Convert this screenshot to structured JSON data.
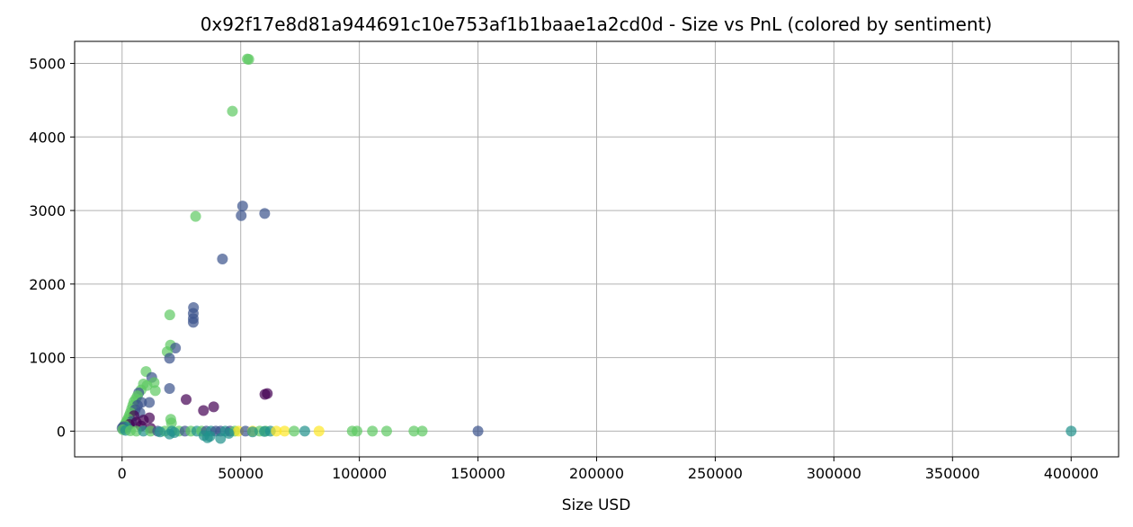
{
  "chart_data": {
    "type": "scatter",
    "title": "0x92f17e8d81a944691c10e753af1b1baae1a2cd0d - Size vs PnL (colored by sentiment)",
    "xlabel": "Size USD",
    "ylabel": "",
    "xlim": [
      -20000,
      420000
    ],
    "ylim": [
      -350,
      5300
    ],
    "xticks": [
      0,
      50000,
      100000,
      150000,
      200000,
      250000,
      300000,
      350000,
      400000
    ],
    "yticks": [
      0,
      1000,
      2000,
      3000,
      4000,
      5000
    ],
    "grid": true,
    "colors": {
      "purple": "#440154",
      "blue": "#3b528b",
      "teal": "#21918c",
      "green": "#5ec962",
      "yellow": "#fde725"
    },
    "points": [
      {
        "x": 52800,
        "y": 5060,
        "c": "green"
      },
      {
        "x": 53400,
        "y": 5055,
        "c": "green"
      },
      {
        "x": 46500,
        "y": 4350,
        "c": "green"
      },
      {
        "x": 50800,
        "y": 3060,
        "c": "blue"
      },
      {
        "x": 50200,
        "y": 2930,
        "c": "blue"
      },
      {
        "x": 60100,
        "y": 2960,
        "c": "blue"
      },
      {
        "x": 31000,
        "y": 2920,
        "c": "green"
      },
      {
        "x": 42300,
        "y": 2340,
        "c": "blue"
      },
      {
        "x": 30100,
        "y": 1680,
        "c": "blue"
      },
      {
        "x": 30000,
        "y": 1600,
        "c": "blue"
      },
      {
        "x": 30000,
        "y": 1530,
        "c": "blue"
      },
      {
        "x": 30000,
        "y": 1480,
        "c": "blue"
      },
      {
        "x": 20100,
        "y": 1580,
        "c": "green"
      },
      {
        "x": 20400,
        "y": 1170,
        "c": "green"
      },
      {
        "x": 22500,
        "y": 1130,
        "c": "blue"
      },
      {
        "x": 19000,
        "y": 1080,
        "c": "green"
      },
      {
        "x": 20000,
        "y": 990,
        "c": "blue"
      },
      {
        "x": 10100,
        "y": 810,
        "c": "green"
      },
      {
        "x": 12500,
        "y": 730,
        "c": "blue"
      },
      {
        "x": 13500,
        "y": 660,
        "c": "green"
      },
      {
        "x": 9000,
        "y": 640,
        "c": "green"
      },
      {
        "x": 10500,
        "y": 620,
        "c": "green"
      },
      {
        "x": 20000,
        "y": 580,
        "c": "blue"
      },
      {
        "x": 14000,
        "y": 550,
        "c": "green"
      },
      {
        "x": 8000,
        "y": 560,
        "c": "green"
      },
      {
        "x": 7000,
        "y": 520,
        "c": "blue"
      },
      {
        "x": 6500,
        "y": 480,
        "c": "green"
      },
      {
        "x": 60200,
        "y": 500,
        "c": "purple"
      },
      {
        "x": 61200,
        "y": 510,
        "c": "purple"
      },
      {
        "x": 27000,
        "y": 430,
        "c": "purple"
      },
      {
        "x": 5800,
        "y": 440,
        "c": "green"
      },
      {
        "x": 5000,
        "y": 400,
        "c": "green"
      },
      {
        "x": 11500,
        "y": 390,
        "c": "blue"
      },
      {
        "x": 8200,
        "y": 390,
        "c": "blue"
      },
      {
        "x": 4500,
        "y": 350,
        "c": "green"
      },
      {
        "x": 6500,
        "y": 350,
        "c": "blue"
      },
      {
        "x": 38600,
        "y": 330,
        "c": "purple"
      },
      {
        "x": 4000,
        "y": 300,
        "c": "green"
      },
      {
        "x": 5500,
        "y": 290,
        "c": "blue"
      },
      {
        "x": 34300,
        "y": 280,
        "c": "purple"
      },
      {
        "x": 3500,
        "y": 250,
        "c": "green"
      },
      {
        "x": 7500,
        "y": 250,
        "c": "blue"
      },
      {
        "x": 3000,
        "y": 210,
        "c": "green"
      },
      {
        "x": 5000,
        "y": 210,
        "c": "purple"
      },
      {
        "x": 11500,
        "y": 180,
        "c": "purple"
      },
      {
        "x": 2500,
        "y": 170,
        "c": "green"
      },
      {
        "x": 20500,
        "y": 160,
        "c": "green"
      },
      {
        "x": 9000,
        "y": 150,
        "c": "purple"
      },
      {
        "x": 2000,
        "y": 140,
        "c": "green"
      },
      {
        "x": 4000,
        "y": 130,
        "c": "blue"
      },
      {
        "x": 6000,
        "y": 120,
        "c": "purple"
      },
      {
        "x": 1500,
        "y": 110,
        "c": "green"
      },
      {
        "x": 20800,
        "y": 110,
        "c": "green"
      },
      {
        "x": 3000,
        "y": 90,
        "c": "purple"
      },
      {
        "x": 1000,
        "y": 80,
        "c": "green"
      },
      {
        "x": 8000,
        "y": 70,
        "c": "purple"
      },
      {
        "x": 500,
        "y": 60,
        "c": "blue"
      },
      {
        "x": 2000,
        "y": 50,
        "c": "teal"
      },
      {
        "x": 12000,
        "y": 40,
        "c": "purple"
      },
      {
        "x": 0,
        "y": 40,
        "c": "blue"
      },
      {
        "x": 300,
        "y": 20,
        "c": "green"
      },
      {
        "x": 1500,
        "y": 10,
        "c": "teal"
      },
      {
        "x": 3500,
        "y": 5,
        "c": "green"
      },
      {
        "x": 6000,
        "y": 0,
        "c": "green"
      },
      {
        "x": 9000,
        "y": 0,
        "c": "teal"
      },
      {
        "x": 12000,
        "y": 0,
        "c": "green"
      },
      {
        "x": 15000,
        "y": 0,
        "c": "blue"
      },
      {
        "x": 18000,
        "y": 0,
        "c": "green"
      },
      {
        "x": 21000,
        "y": 0,
        "c": "teal"
      },
      {
        "x": 24000,
        "y": 0,
        "c": "green"
      },
      {
        "x": 26500,
        "y": 0,
        "c": "blue"
      },
      {
        "x": 29000,
        "y": 0,
        "c": "green"
      },
      {
        "x": 31500,
        "y": 0,
        "c": "teal"
      },
      {
        "x": 33500,
        "y": 0,
        "c": "green"
      },
      {
        "x": 35500,
        "y": 0,
        "c": "blue"
      },
      {
        "x": 37500,
        "y": 0,
        "c": "teal"
      },
      {
        "x": 39500,
        "y": 0,
        "c": "blue"
      },
      {
        "x": 41500,
        "y": 0,
        "c": "blue"
      },
      {
        "x": 43500,
        "y": 0,
        "c": "teal"
      },
      {
        "x": 45500,
        "y": 0,
        "c": "blue"
      },
      {
        "x": 47500,
        "y": 0,
        "c": "green"
      },
      {
        "x": 49000,
        "y": 0,
        "c": "yellow"
      },
      {
        "x": 52000,
        "y": 0,
        "c": "blue"
      },
      {
        "x": 55000,
        "y": 0,
        "c": "yellow"
      },
      {
        "x": 58000,
        "y": 0,
        "c": "green"
      },
      {
        "x": 60500,
        "y": 0,
        "c": "green"
      },
      {
        "x": 62500,
        "y": 0,
        "c": "teal"
      },
      {
        "x": 65000,
        "y": 0,
        "c": "yellow"
      },
      {
        "x": 68500,
        "y": 0,
        "c": "yellow"
      },
      {
        "x": 72500,
        "y": 0,
        "c": "green"
      },
      {
        "x": 77000,
        "y": 0,
        "c": "teal"
      },
      {
        "x": 83000,
        "y": 0,
        "c": "yellow"
      },
      {
        "x": 97000,
        "y": 0,
        "c": "green"
      },
      {
        "x": 99000,
        "y": 0,
        "c": "green"
      },
      {
        "x": 105500,
        "y": 0,
        "c": "green"
      },
      {
        "x": 111500,
        "y": 0,
        "c": "green"
      },
      {
        "x": 123000,
        "y": 0,
        "c": "green"
      },
      {
        "x": 126500,
        "y": 0,
        "c": "green"
      },
      {
        "x": 150000,
        "y": 0,
        "c": "blue"
      },
      {
        "x": 400000,
        "y": 0,
        "c": "teal"
      },
      {
        "x": 34500,
        "y": -60,
        "c": "teal"
      },
      {
        "x": 36000,
        "y": -90,
        "c": "teal"
      },
      {
        "x": 37000,
        "y": -70,
        "c": "teal"
      },
      {
        "x": 41500,
        "y": -100,
        "c": "teal"
      },
      {
        "x": 20000,
        "y": -40,
        "c": "teal"
      },
      {
        "x": 22000,
        "y": -20,
        "c": "teal"
      },
      {
        "x": 16000,
        "y": -10,
        "c": "teal"
      },
      {
        "x": 45000,
        "y": -30,
        "c": "teal"
      },
      {
        "x": 55000,
        "y": -10,
        "c": "teal"
      },
      {
        "x": 60000,
        "y": -5,
        "c": "teal"
      }
    ]
  }
}
